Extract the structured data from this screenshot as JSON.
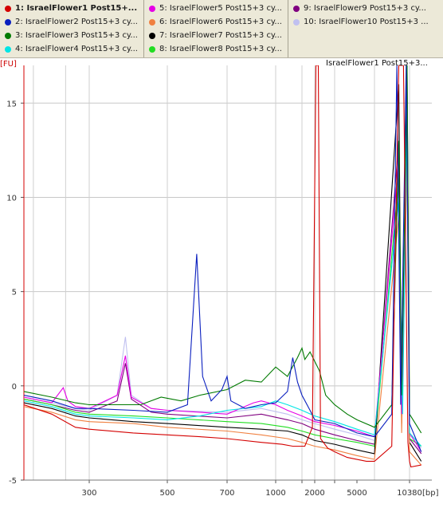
{
  "legend": {
    "items": [
      {
        "label": "1: IsraelFlower1 Post15+...",
        "color": "#d40000",
        "selected": true
      },
      {
        "label": "2: IsraelFlower2 Post15+3 cy...",
        "color": "#0a1fbf",
        "selected": false
      },
      {
        "label": "3: IsraelFlower3 Post15+3 cy...",
        "color": "#007a00",
        "selected": false
      },
      {
        "label": "4: IsraelFlower4 Post15+3 cy...",
        "color": "#00e5e5",
        "selected": false
      },
      {
        "label": "5: IsraelFlower5 Post15+3 cy...",
        "color": "#e600e6",
        "selected": false
      },
      {
        "label": "6: IsraelFlower6 Post15+3 cy...",
        "color": "#f08040",
        "selected": false
      },
      {
        "label": "7: IsraelFlower7 Post15+3 cy...",
        "color": "#000000",
        "selected": false
      },
      {
        "label": "8: IsraelFlower8 Post15+3 cy...",
        "color": "#22dd22",
        "selected": false
      },
      {
        "label": "9: IsraelFlower9 Post15+3 cy...",
        "color": "#800080",
        "selected": false
      },
      {
        "label": "10: IsraelFlower10 Post15+3 ...",
        "color": "#c0c0f0",
        "selected": false
      }
    ]
  },
  "chart_data": {
    "type": "line",
    "ylabel": "[FU]",
    "xlabel": "[bp]",
    "selected_label": "IsraelFlower1 Post15+3...",
    "ylim": [
      -5,
      17
    ],
    "yticks": [
      -5,
      0,
      5,
      10,
      15
    ],
    "xticks": [
      300,
      500,
      700,
      1000,
      1500,
      2000,
      3000,
      5000,
      10380
    ],
    "xtick_labels": [
      "300",
      "500",
      "700",
      "1000",
      "",
      "2000",
      "",
      "5000",
      "10380"
    ],
    "grid": true,
    "ladder_bp": [
      35,
      50,
      150,
      300,
      500,
      700,
      1000,
      1500,
      2000,
      3000,
      7000,
      10380
    ],
    "x_scale": "ladder (piecewise)",
    "series": [
      {
        "name": "1: IsraelFlower1 Post15+...",
        "color": "#d40000",
        "points": [
          [
            35,
            -1.0
          ],
          [
            100,
            -1.5
          ],
          [
            200,
            -2.2
          ],
          [
            300,
            -2.3
          ],
          [
            400,
            -2.5
          ],
          [
            500,
            -2.6
          ],
          [
            600,
            -2.7
          ],
          [
            700,
            -2.8
          ],
          [
            900,
            -3.0
          ],
          [
            1100,
            -3.1
          ],
          [
            1300,
            -3.2
          ],
          [
            1600,
            -3.2
          ],
          [
            1900,
            -2.2
          ],
          [
            2050,
            17
          ],
          [
            2150,
            17
          ],
          [
            2250,
            -2.8
          ],
          [
            2600,
            -3.3
          ],
          [
            3000,
            -3.5
          ],
          [
            4000,
            -3.8
          ],
          [
            6000,
            -4.0
          ],
          [
            7000,
            -4.0
          ],
          [
            8500,
            -3.2
          ],
          [
            9200,
            17
          ],
          [
            9700,
            17
          ],
          [
            10200,
            -3.0
          ],
          [
            10380,
            -4.0
          ],
          [
            10450,
            -4.3
          ],
          [
            11000,
            -4.2
          ]
        ]
      },
      {
        "name": "2: IsraelFlower2 Post15+3 cy...",
        "color": "#0a1fbf",
        "points": [
          [
            35,
            -0.5
          ],
          [
            100,
            -0.8
          ],
          [
            200,
            -1.2
          ],
          [
            300,
            -1.2
          ],
          [
            400,
            -1.3
          ],
          [
            500,
            -1.4
          ],
          [
            560,
            -1.0
          ],
          [
            590,
            7.0
          ],
          [
            610,
            0.5
          ],
          [
            640,
            -0.8
          ],
          [
            680,
            -0.2
          ],
          [
            700,
            0.5
          ],
          [
            720,
            -0.8
          ],
          [
            800,
            -1.2
          ],
          [
            900,
            -1.0
          ],
          [
            1000,
            -0.9
          ],
          [
            1200,
            -0.3
          ],
          [
            1300,
            1.5
          ],
          [
            1400,
            0.2
          ],
          [
            1500,
            -0.5
          ],
          [
            1800,
            -1.3
          ],
          [
            2000,
            -1.8
          ],
          [
            3000,
            -2.0
          ],
          [
            5000,
            -2.5
          ],
          [
            7000,
            -2.7
          ],
          [
            8500,
            -1.5
          ],
          [
            9000,
            17
          ],
          [
            9400,
            -1.0
          ],
          [
            10000,
            17
          ],
          [
            10380,
            -2.0
          ],
          [
            11000,
            -3.5
          ]
        ]
      },
      {
        "name": "3: IsraelFlower3 Post15+3 cy...",
        "color": "#007a00",
        "points": [
          [
            35,
            -0.3
          ],
          [
            100,
            -0.6
          ],
          [
            200,
            -0.9
          ],
          [
            300,
            -1.0
          ],
          [
            420,
            -1.0
          ],
          [
            480,
            -0.6
          ],
          [
            540,
            -0.8
          ],
          [
            600,
            -0.5
          ],
          [
            700,
            -0.2
          ],
          [
            800,
            0.3
          ],
          [
            900,
            0.2
          ],
          [
            1000,
            1.0
          ],
          [
            1200,
            0.5
          ],
          [
            1400,
            1.5
          ],
          [
            1500,
            2.0
          ],
          [
            1600,
            1.4
          ],
          [
            1800,
            1.8
          ],
          [
            2000,
            1.3
          ],
          [
            2200,
            0.8
          ],
          [
            2500,
            -0.5
          ],
          [
            3000,
            -1.0
          ],
          [
            4000,
            -1.5
          ],
          [
            5000,
            -1.8
          ],
          [
            7000,
            -2.2
          ],
          [
            8500,
            -1.0
          ],
          [
            9200,
            13
          ],
          [
            9500,
            -0.5
          ],
          [
            10100,
            17
          ],
          [
            10380,
            -1.5
          ],
          [
            11000,
            -2.5
          ]
        ]
      },
      {
        "name": "4: IsraelFlower4 Post15+3 cy...",
        "color": "#00e5e5",
        "points": [
          [
            35,
            -0.8
          ],
          [
            100,
            -1.1
          ],
          [
            200,
            -1.5
          ],
          [
            300,
            -1.6
          ],
          [
            400,
            -1.7
          ],
          [
            500,
            -1.8
          ],
          [
            600,
            -1.6
          ],
          [
            700,
            -1.3
          ],
          [
            900,
            -1.1
          ],
          [
            1000,
            -0.8
          ],
          [
            1200,
            -1.0
          ],
          [
            1500,
            -1.3
          ],
          [
            2000,
            -1.6
          ],
          [
            3000,
            -1.9
          ],
          [
            5000,
            -2.3
          ],
          [
            7000,
            -2.6
          ],
          [
            9200,
            10
          ],
          [
            9600,
            -1.5
          ],
          [
            10100,
            15
          ],
          [
            10380,
            -2.5
          ],
          [
            11000,
            -3.2
          ]
        ]
      },
      {
        "name": "5: IsraelFlower5 Post15+3 cy...",
        "color": "#e600e6",
        "points": [
          [
            35,
            -0.6
          ],
          [
            100,
            -0.9
          ],
          [
            140,
            -0.1
          ],
          [
            160,
            -0.8
          ],
          [
            200,
            -1.1
          ],
          [
            300,
            -1.2
          ],
          [
            360,
            -0.5
          ],
          [
            380,
            1.6
          ],
          [
            395,
            -0.6
          ],
          [
            450,
            -1.2
          ],
          [
            500,
            -1.3
          ],
          [
            600,
            -1.4
          ],
          [
            700,
            -1.5
          ],
          [
            850,
            -0.9
          ],
          [
            900,
            -0.8
          ],
          [
            1000,
            -1.0
          ],
          [
            1200,
            -1.3
          ],
          [
            1500,
            -1.6
          ],
          [
            2000,
            -1.9
          ],
          [
            3000,
            -2.1
          ],
          [
            5000,
            -2.4
          ],
          [
            7000,
            -2.7
          ],
          [
            9200,
            12
          ],
          [
            9500,
            -1.5
          ],
          [
            10100,
            16
          ],
          [
            10380,
            -2.5
          ],
          [
            11000,
            -3.5
          ]
        ]
      },
      {
        "name": "6: IsraelFlower6 Post15+3 cy...",
        "color": "#f08040",
        "points": [
          [
            35,
            -1.1
          ],
          [
            100,
            -1.4
          ],
          [
            200,
            -1.8
          ],
          [
            300,
            -1.9
          ],
          [
            400,
            -2.0
          ],
          [
            500,
            -2.2
          ],
          [
            700,
            -2.4
          ],
          [
            900,
            -2.6
          ],
          [
            1200,
            -2.8
          ],
          [
            1500,
            -3.0
          ],
          [
            2000,
            -3.2
          ],
          [
            3000,
            -3.4
          ],
          [
            5000,
            -3.7
          ],
          [
            7000,
            -3.9
          ],
          [
            9200,
            9
          ],
          [
            9500,
            -2.5
          ],
          [
            10100,
            12
          ],
          [
            10380,
            -3.5
          ],
          [
            11000,
            -4.2
          ]
        ]
      },
      {
        "name": "7: IsraelFlower7 Post15+3 cy...",
        "color": "#000000",
        "points": [
          [
            35,
            -0.9
          ],
          [
            100,
            -1.2
          ],
          [
            200,
            -1.6
          ],
          [
            300,
            -1.7
          ],
          [
            400,
            -1.9
          ],
          [
            500,
            -2.0
          ],
          [
            700,
            -2.2
          ],
          [
            900,
            -2.3
          ],
          [
            1200,
            -2.4
          ],
          [
            1500,
            -2.6
          ],
          [
            2000,
            -2.9
          ],
          [
            3000,
            -3.1
          ],
          [
            5000,
            -3.4
          ],
          [
            7000,
            -3.6
          ],
          [
            9200,
            16
          ],
          [
            9500,
            -2.0
          ],
          [
            10100,
            17
          ],
          [
            10380,
            -3.0
          ],
          [
            11000,
            -4.0
          ]
        ]
      },
      {
        "name": "8: IsraelFlower8 Post15+3 cy...",
        "color": "#22dd22",
        "points": [
          [
            35,
            -0.7
          ],
          [
            100,
            -1.0
          ],
          [
            200,
            -1.4
          ],
          [
            300,
            -1.5
          ],
          [
            400,
            -1.6
          ],
          [
            500,
            -1.7
          ],
          [
            700,
            -1.9
          ],
          [
            900,
            -2.0
          ],
          [
            1200,
            -2.2
          ],
          [
            1500,
            -2.4
          ],
          [
            2000,
            -2.6
          ],
          [
            3000,
            -2.8
          ],
          [
            5000,
            -3.0
          ],
          [
            7000,
            -3.2
          ],
          [
            9200,
            11
          ],
          [
            9500,
            -1.8
          ],
          [
            10100,
            14
          ],
          [
            10380,
            -2.8
          ],
          [
            11000,
            -3.2
          ]
        ]
      },
      {
        "name": "9: IsraelFlower9 Post15+3 cy...",
        "color": "#800080",
        "points": [
          [
            35,
            -0.7
          ],
          [
            100,
            -1.0
          ],
          [
            200,
            -1.3
          ],
          [
            300,
            -1.4
          ],
          [
            360,
            -0.8
          ],
          [
            380,
            1.2
          ],
          [
            395,
            -0.7
          ],
          [
            450,
            -1.4
          ],
          [
            500,
            -1.5
          ],
          [
            700,
            -1.7
          ],
          [
            900,
            -1.5
          ],
          [
            1200,
            -1.8
          ],
          [
            1500,
            -2.0
          ],
          [
            2000,
            -2.3
          ],
          [
            3000,
            -2.6
          ],
          [
            5000,
            -2.9
          ],
          [
            7000,
            -3.1
          ],
          [
            9200,
            13
          ],
          [
            9500,
            -1.8
          ],
          [
            10100,
            15
          ],
          [
            10380,
            -2.8
          ],
          [
            11000,
            -3.6
          ]
        ]
      },
      {
        "name": "10: IsraelFlower10 Post15+3 ...",
        "color": "#c0c0f0",
        "points": [
          [
            35,
            -0.6
          ],
          [
            100,
            -0.9
          ],
          [
            200,
            -1.2
          ],
          [
            300,
            -1.3
          ],
          [
            360,
            -0.5
          ],
          [
            380,
            2.6
          ],
          [
            395,
            -0.5
          ],
          [
            450,
            -1.2
          ],
          [
            500,
            -1.3
          ],
          [
            700,
            -1.4
          ],
          [
            900,
            -1.2
          ],
          [
            1200,
            -1.5
          ],
          [
            1500,
            -1.8
          ],
          [
            2000,
            -2.0
          ],
          [
            3000,
            -2.3
          ],
          [
            5000,
            -2.6
          ],
          [
            7000,
            -2.9
          ],
          [
            9200,
            10
          ],
          [
            9500,
            -1.6
          ],
          [
            10100,
            13
          ],
          [
            10380,
            -2.6
          ],
          [
            11000,
            -3.3
          ]
        ]
      }
    ]
  }
}
